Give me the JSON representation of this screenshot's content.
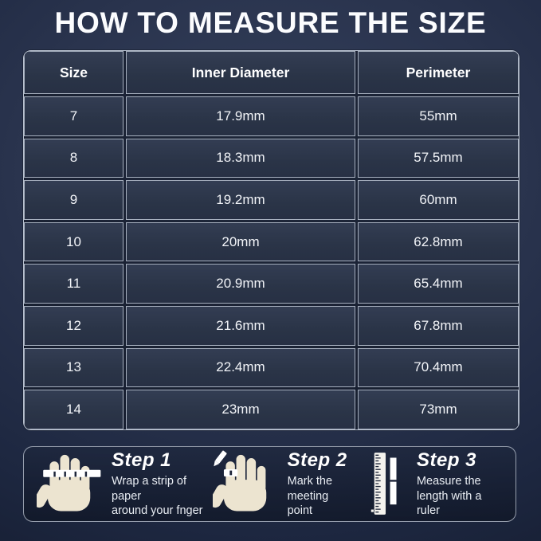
{
  "title": "HOW TO MEASURE THE SIZE",
  "chart_data": {
    "type": "table",
    "title": "HOW TO MEASURE THE SIZE",
    "columns": [
      "Size",
      "Inner Diameter",
      "Perimeter"
    ],
    "rows": [
      [
        "7",
        "17.9mm",
        "55mm"
      ],
      [
        "8",
        "18.3mm",
        "57.5mm"
      ],
      [
        "9",
        "19.2mm",
        "60mm"
      ],
      [
        "10",
        "20mm",
        "62.8mm"
      ],
      [
        "11",
        "20.9mm",
        "65.4mm"
      ],
      [
        "12",
        "21.6mm",
        "67.8mm"
      ],
      [
        "13",
        "22.4mm",
        "70.4mm"
      ],
      [
        "14",
        "23mm",
        "73mm"
      ]
    ]
  },
  "steps": [
    {
      "label": "Step 1",
      "description": "Wrap a strip of paper\naround your fnger",
      "icon": "hand-with-paper-strip-icon"
    },
    {
      "label": "Step 2",
      "description": "Mark the meeting\npoint",
      "icon": "hand-with-pencil-mark-icon"
    },
    {
      "label": "Step 3",
      "description": "Measure the\nlength with a ruler",
      "icon": "ruler-with-strip-icon"
    }
  ],
  "colors": {
    "background_navy": "#1d2740",
    "cell_navy": "#2b3447",
    "border_light": "#c8cfdb",
    "text_white": "#f5f7fa",
    "hand_cream": "#ece4d0",
    "ink_dark": "#1c2438"
  }
}
